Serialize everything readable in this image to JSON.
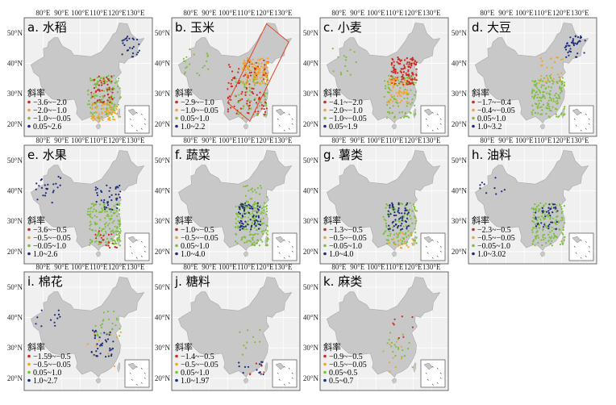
{
  "figure": {
    "lon_ticks": [
      "80°E",
      "90°E",
      "100°E",
      "110°E",
      "120°E",
      "130°E"
    ],
    "lat_ticks": [
      "50°N",
      "40°N",
      "30°N",
      "20°N"
    ],
    "legend_heading": "斜率",
    "colors": {
      "panel_bg": "#f0f0f0",
      "grid": "#ffffff",
      "land": "#c8c8c8",
      "land_edge": "#a8a8a8",
      "frame": "#444444",
      "red": "#cc2a1f",
      "orange": "#f0a429",
      "green": "#7cbf3a",
      "navy": "#1b2a7a",
      "highlight_box": "#e0472a"
    }
  },
  "panels": [
    {
      "title": "a. 水稻",
      "legend": [
        "−3.6~−2.0",
        "−2.0~−1.0",
        "−1.0~−0.05",
        "0.05~2.6"
      ]
    },
    {
      "title": "b. 玉米",
      "legend": [
        "−2.9~−1.0",
        "−1.0~−0.05",
        "0.05~1.0",
        "1.0~2.2"
      ]
    },
    {
      "title": "c. 小麦",
      "legend": [
        "−4.1~−2.0",
        "−2.0~−1.0",
        "−1.0~−0.05",
        "0.05~1.9"
      ]
    },
    {
      "title": "d. 大豆",
      "legend": [
        "−1.7~−0.4",
        "−0.4~−0.05",
        "0.05~1.0",
        "1.0~3.2"
      ]
    },
    {
      "title": "e. 水果",
      "legend": [
        "−3.6~−0.5",
        "−0.5~−0.05",
        "−0.05~1.0",
        "1.0~2.6"
      ]
    },
    {
      "title": "f. 蔬菜",
      "legend": [
        "−1.0~−0.5",
        "−0.5~−0.05",
        "0.05~1.0",
        "1.0~4.0"
      ]
    },
    {
      "title": "g. 薯类",
      "legend": [
        "−1.3~−0.5",
        "−0.5~−0.05",
        "−0.05~1.0",
        "1.0~4.0"
      ]
    },
    {
      "title": "h. 油料",
      "legend": [
        "−2.3~−0.5",
        "−0.5~−0.05",
        "−0.05~1.0",
        "1.0~3.02"
      ]
    },
    {
      "title": "i. 棉花",
      "legend": [
        "−1.59~−0.5",
        "−0.5~−0.05",
        "0.05~1.0",
        "1.0~2.7"
      ]
    },
    {
      "title": "j. 糖料",
      "legend": [
        "−1.4~−0.5",
        "−0.5~−0.05",
        "0.05~1.0",
        "1.0~1.97"
      ]
    },
    {
      "title": "k. 麻类",
      "legend": [
        "−0.9~−0.5",
        "−0.5~−0.05",
        "0.05~0.5",
        "0.5~0.7"
      ]
    }
  ]
}
